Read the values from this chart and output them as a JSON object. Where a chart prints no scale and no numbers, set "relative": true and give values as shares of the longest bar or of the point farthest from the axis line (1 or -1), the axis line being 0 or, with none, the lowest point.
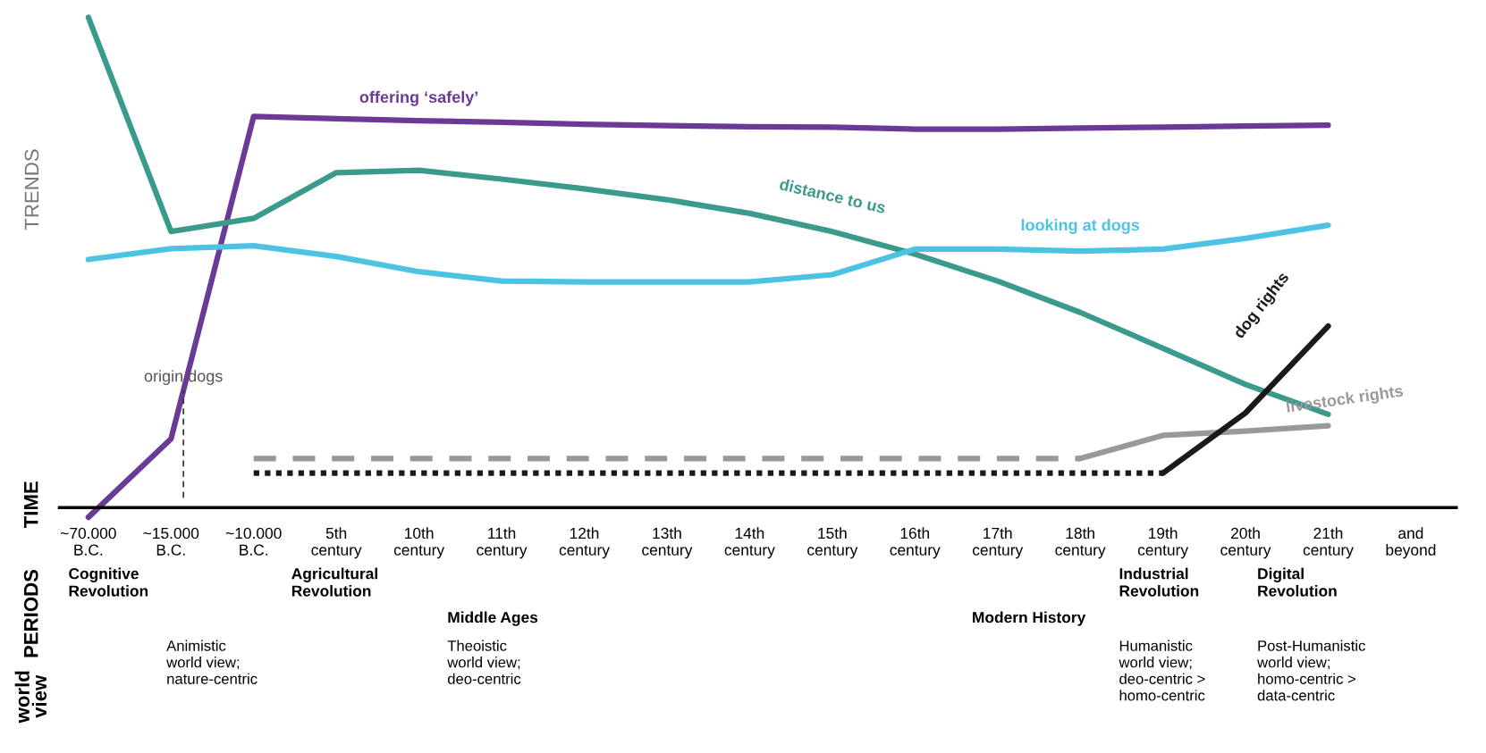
{
  "chart_data": {
    "type": "line",
    "relative": true,
    "ylabel": "TRENDS",
    "categories": [
      "~70.000\nB.C.",
      "~15.000\nB.C.",
      "~10.000\nB.C.",
      "5th\ncentury",
      "10th\ncentury",
      "11th\ncentury",
      "12th\ncentury",
      "13th\ncentury",
      "14th\ncentury",
      "15th\ncentury",
      "16th\ncentury",
      "17th\ncentury",
      "18th\ncentury",
      "19th\ncentury",
      "20th\ncentury",
      "21th\ncentury",
      "and\nbeyond"
    ],
    "series": [
      {
        "name": "offering ‘safely’",
        "color": "#6b3a96",
        "values": [
          -0.02,
          0.14,
          0.798,
          0.793,
          0.789,
          0.786,
          0.782,
          0.779,
          0.777,
          0.776,
          0.772,
          0.772,
          0.774,
          0.776,
          0.778,
          0.78,
          null
        ]
      },
      {
        "name": "distance to us",
        "color": "#3a9a8c",
        "values": [
          1,
          0.563,
          0.59,
          0.683,
          0.688,
          0.67,
          0.65,
          0.628,
          0.6,
          0.563,
          0.517,
          0.462,
          0.398,
          0.325,
          0.251,
          0.19,
          null
        ]
      },
      {
        "name": "looking at dogs",
        "color": "#4dc3e3",
        "values": [
          0.506,
          0.528,
          0.534,
          0.512,
          0.481,
          0.462,
          0.46,
          0.46,
          0.46,
          0.475,
          0.527,
          0.527,
          0.523,
          0.527,
          0.549,
          0.576,
          null
        ]
      },
      {
        "color": "#999999",
        "line_style": "dashed",
        "values": [
          null,
          null,
          0.1,
          0.1,
          0.1,
          0.1,
          0.1,
          0.1,
          0.1,
          0.1,
          0.1,
          0.1,
          0.1,
          null,
          null,
          null,
          null
        ]
      },
      {
        "name": "livestock rights",
        "color": "#999999",
        "values": [
          null,
          null,
          null,
          null,
          null,
          null,
          null,
          null,
          null,
          null,
          null,
          null,
          0.1,
          0.147,
          0.156,
          0.167,
          null
        ]
      },
      {
        "color": "#1a1a1a",
        "line_style": "dotted",
        "values": [
          null,
          null,
          0.07,
          0.07,
          0.07,
          0.07,
          0.07,
          0.07,
          0.07,
          0.07,
          0.07,
          0.07,
          0.07,
          0.07,
          null,
          null,
          null
        ]
      },
      {
        "name": "dog rights",
        "color": "#1a1a1a",
        "values": [
          null,
          null,
          null,
          null,
          null,
          null,
          null,
          null,
          null,
          null,
          null,
          null,
          null,
          0.07,
          0.193,
          0.37,
          null
        ]
      }
    ],
    "annotations": [
      "origin dogs",
      "TIME",
      "PERIODS",
      "Cognitive\nRevolution",
      "Agricultural\nRevolution",
      "Industrial\nRevolution",
      "Digital\nRevolution",
      "Middle Ages",
      "Modern History",
      "world\nview",
      "Animistic\nworld view;\nnature-centric",
      "Theoistic\nworld view;\ndeo-centric",
      "Humanistic\nworld view;\ndeo-centric >\nhomo-centric",
      "Post-Humanistic\nworld view;\nhomo-centric >\ndata-centric"
    ],
    "grid": false,
    "legend": false
  }
}
